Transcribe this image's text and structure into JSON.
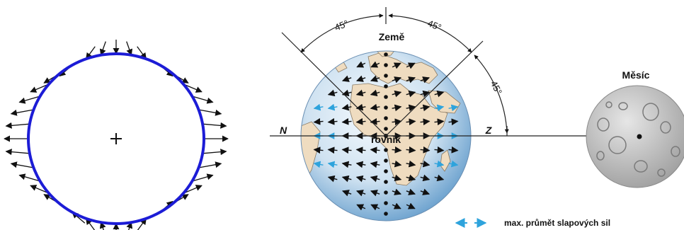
{
  "labels": {
    "earth": "Země",
    "moon": "Měsíc",
    "equator": "rovník",
    "north": "N",
    "zenith": "Z",
    "angle_top_left": "45°",
    "angle_top_right": "45°",
    "angle_right": "45°",
    "legend": "max. průmět slapových sil"
  },
  "colors": {
    "ellipse_outline": "#1c1cd6",
    "tidal_arrow_light": "#2ea3dc",
    "ocean_light": "#eef5fb",
    "ocean_dark": "#5a96c8",
    "land": "#efdcc0",
    "moon": "#c4c4c4"
  }
}
